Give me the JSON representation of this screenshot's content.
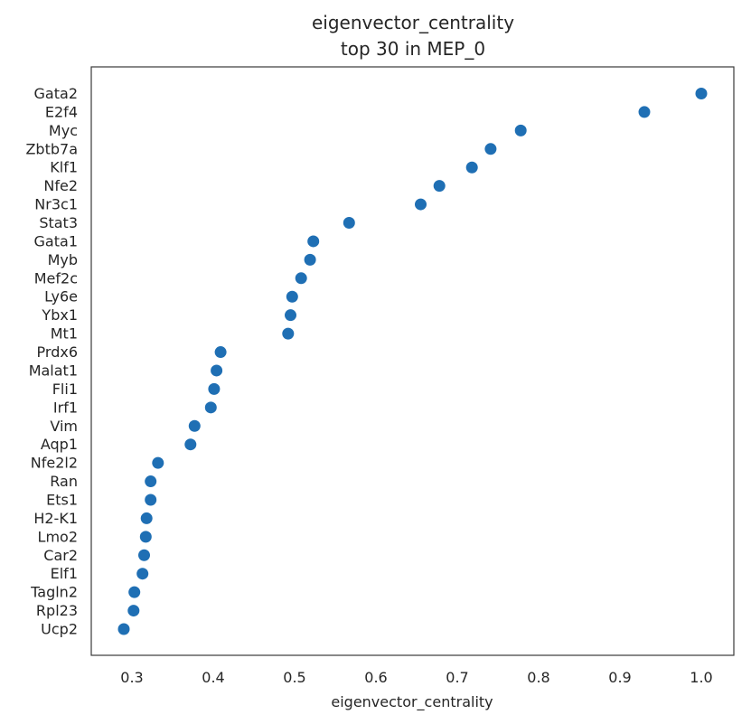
{
  "chart_data": {
    "type": "scatter",
    "title": "eigenvector_centrality",
    "subtitle": "top 30 in MEP_0",
    "xlabel": "eigenvector_centrality",
    "ylabel": "",
    "xlim": [
      0.25,
      1.04
    ],
    "xticks": [
      0.3,
      0.4,
      0.5,
      0.6,
      0.7,
      0.8,
      0.9,
      1.0
    ],
    "xtick_labels": [
      "0.3",
      "0.4",
      "0.5",
      "0.6",
      "0.7",
      "0.8",
      "0.9",
      "1.0"
    ],
    "grid": false,
    "marker_color": "#1f6fb4",
    "categories": [
      "Gata2",
      "E2f4",
      "Myc",
      "Zbtb7a",
      "Klf1",
      "Nfe2",
      "Nr3c1",
      "Stat3",
      "Gata1",
      "Myb",
      "Mef2c",
      "Ly6e",
      "Ybx1",
      "Mt1",
      "Prdx6",
      "Malat1",
      "Fli1",
      "Irf1",
      "Vim",
      "Aqp1",
      "Nfe2l2",
      "Ran",
      "Ets1",
      "H2-K1",
      "Lmo2",
      "Car2",
      "Elf1",
      "Tagln2",
      "Rpl23",
      "Ucp2"
    ],
    "values": [
      1.0,
      0.93,
      0.778,
      0.741,
      0.718,
      0.678,
      0.655,
      0.567,
      0.523,
      0.519,
      0.508,
      0.497,
      0.495,
      0.492,
      0.409,
      0.404,
      0.401,
      0.397,
      0.377,
      0.372,
      0.332,
      0.323,
      0.323,
      0.318,
      0.317,
      0.315,
      0.313,
      0.303,
      0.302,
      0.29
    ]
  }
}
